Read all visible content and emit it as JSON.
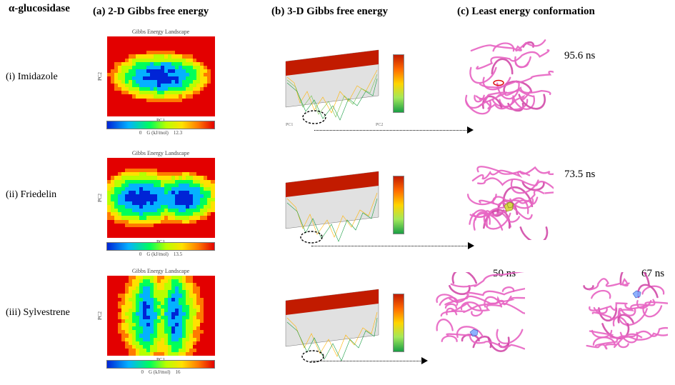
{
  "figure_title": "α-glucosidase",
  "columns": {
    "a": {
      "label": "(a) 2-D Gibbs free energy"
    },
    "b": {
      "label": "(b) 3-D Gibbs free energy"
    },
    "c": {
      "label": "(c) Least energy conformation"
    }
  },
  "heatmap_common": {
    "title": "Gibbs Energy Landscape",
    "xlabel": "PC1",
    "ylabel": "PC2",
    "cbar_label_mid": "G (kJ/mol)",
    "cbar_min": 0,
    "palette": [
      "#0024d6",
      "#04b2ff",
      "#00ff5a",
      "#b8ff00",
      "#ffe100",
      "#ff7a00",
      "#e30000"
    ]
  },
  "surface_common": {
    "top_color": "#c21b00",
    "side_colors": [
      "#ffd400",
      "#a2e85a",
      "#1a9e44"
    ],
    "colorbar": [
      "#c21b00",
      "#ff6b00",
      "#ffd400",
      "#a2e85a",
      "#1a9e44"
    ]
  },
  "protein_color": "#e766c3",
  "rows": [
    {
      "id": "imidazole",
      "label": "(i) Imidazole",
      "cbar_max": 12.3,
      "heatmap_pattern": "broad-horizontal-ellipse",
      "surface_wells": 1,
      "ligand": {
        "kind": "red-ring"
      },
      "conformations": [
        {
          "time_ns": 95.6
        }
      ]
    },
    {
      "id": "friedelin",
      "label": "(ii) Friedelin",
      "cbar_max": 13.5,
      "heatmap_pattern": "two-lobes",
      "surface_wells": 2,
      "ligand": {
        "kind": "yellow-cluster"
      },
      "conformations": [
        {
          "time_ns": 73.5
        }
      ]
    },
    {
      "id": "sylvestrene",
      "label": "(iii) Sylvestrene",
      "cbar_max": 16,
      "heatmap_pattern": "vertical-striations",
      "surface_wells": 2,
      "ligand": {
        "kind": "blue-cluster"
      },
      "conformations": [
        {
          "time_ns": 50
        },
        {
          "time_ns": 67
        }
      ]
    }
  ]
}
